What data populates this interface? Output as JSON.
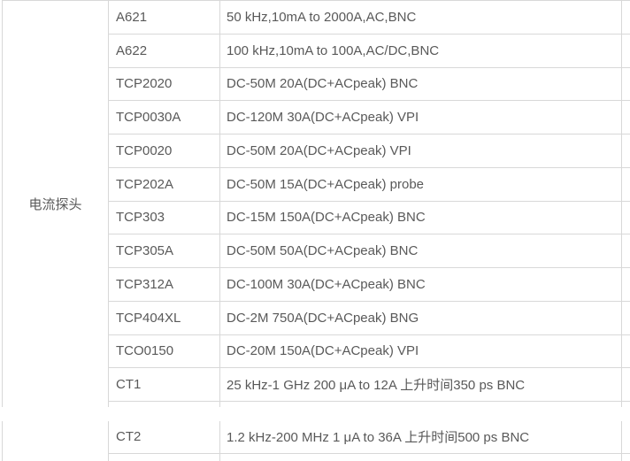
{
  "category_label": "电流探头",
  "colors": {
    "border": "#d8d8d8",
    "text": "#595959",
    "background": "#ffffff"
  },
  "table": {
    "columns": [
      "category",
      "model",
      "spec"
    ],
    "rows": [
      {
        "model": "A621",
        "spec": "50 kHz,10mA to 2000A,AC,BNC"
      },
      {
        "model": "A622",
        "spec": "100 kHz,10mA to 100A,AC/DC,BNC"
      },
      {
        "model": "TCP2020",
        "spec": "DC-50M 20A(DC+ACpeak) BNC"
      },
      {
        "model": "TCP0030A",
        "spec": "DC-120M 30A(DC+ACpeak) VPI"
      },
      {
        "model": "TCP0020",
        "spec": "DC-50M 20A(DC+ACpeak) VPI"
      },
      {
        "model": "TCP202A",
        "spec": "DC-50M 15A(DC+ACpeak) probe"
      },
      {
        "model": "TCP303",
        "spec": "DC-15M 150A(DC+ACpeak) BNC"
      },
      {
        "model": "TCP305A",
        "spec": "DC-50M 50A(DC+ACpeak) BNC"
      },
      {
        "model": "TCP312A",
        "spec": "DC-100M 30A(DC+ACpeak) BNC"
      },
      {
        "model": "TCP404XL",
        "spec": "DC-2M 750A(DC+ACpeak) BNG"
      },
      {
        "model": "TCO0150",
        "spec": "DC-20M 150A(DC+ACpeak) VPI"
      },
      {
        "model": "CT1",
        "spec": "25 kHz-1 GHz 200 μA to 12A 上升时间350 ps BNC"
      }
    ],
    "rows_continued": [
      {
        "model": "CT2",
        "spec": "1.2 kHz-200 MHz 1 μA to 36A 上升时间500 ps BNC"
      }
    ]
  }
}
